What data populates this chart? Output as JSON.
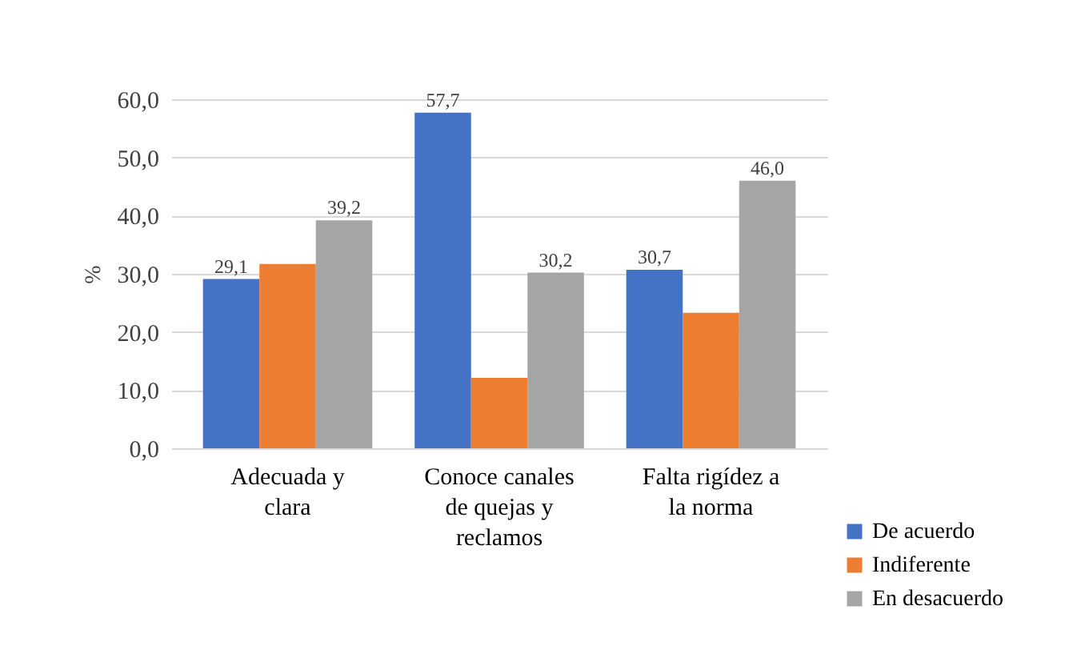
{
  "chart_data": {
    "type": "bar",
    "ylabel": "%",
    "categories": [
      "Adecuada y clara",
      "Conoce canales de quejas y reclamos",
      "Falta rigídez a la norma"
    ],
    "series": [
      {
        "name": "De acuerdo",
        "color": "#4472c4",
        "values": [
          29.1,
          57.7,
          30.7
        ],
        "value_labels": [
          "29,1",
          "57,7",
          "30,7"
        ]
      },
      {
        "name": "Indiferente",
        "color": "#ed7d31",
        "values": [
          31.7,
          12.1,
          23.3
        ]
      },
      {
        "name": "En desacuerdo",
        "color": "#a5a5a5",
        "values": [
          39.2,
          30.2,
          46.0
        ],
        "value_labels": [
          "39,2",
          "30,2",
          "46,0"
        ]
      }
    ],
    "ylim": [
      0,
      60
    ],
    "yticks": [
      {
        "value": 0,
        "label": "0,0"
      },
      {
        "value": 10,
        "label": "10,0"
      },
      {
        "value": 20,
        "label": "20,0"
      },
      {
        "value": 30,
        "label": "30,0"
      },
      {
        "value": 40,
        "label": "40,0"
      },
      {
        "value": 50,
        "label": "50,0"
      },
      {
        "value": 60,
        "label": "60,0"
      }
    ],
    "grid": "y",
    "legend": "bottom right"
  }
}
